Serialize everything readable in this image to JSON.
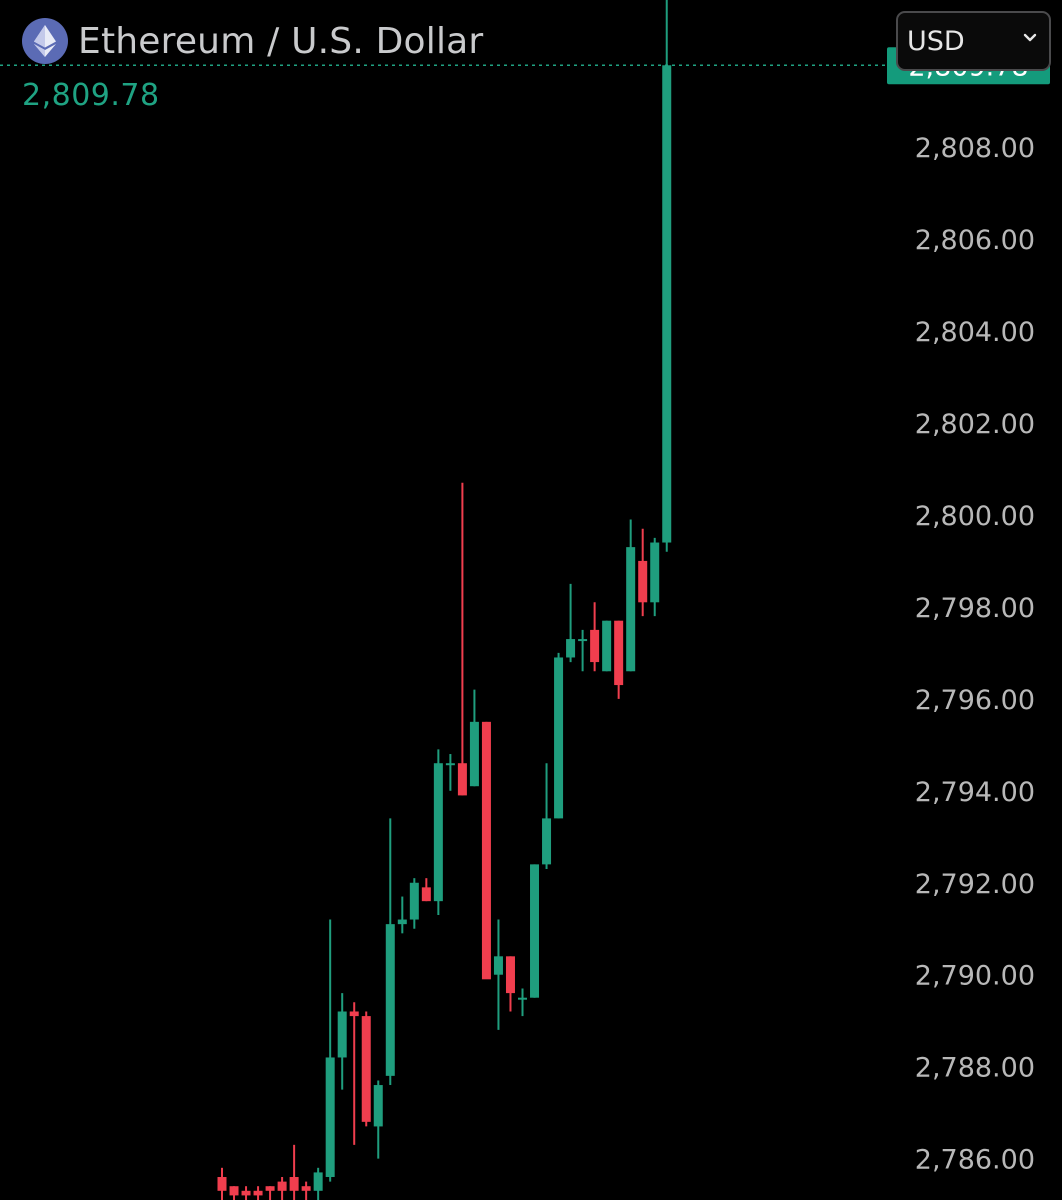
{
  "header": {
    "title": "Ethereum / U.S. Dollar",
    "price": "2,809.78",
    "coin_icon": "ethereum-icon"
  },
  "currency_select": {
    "value": "USD",
    "icon": "chevron-down-icon"
  },
  "colors": {
    "background": "#000000",
    "up": "#1f9e7e",
    "down": "#f03e4e",
    "price_text": "#1fa383",
    "price_tag": "#149b7c",
    "axis_text": "#b8b8b8"
  },
  "chart_data": {
    "type": "candlestick",
    "ylim": [
      2785.1,
      2811.2
    ],
    "y_ticks": [
      "2,808.00",
      "2,806.00",
      "2,804.00",
      "2,802.00",
      "2,800.00",
      "2,798.00",
      "2,796.00",
      "2,794.00",
      "2,792.00",
      "2,790.00",
      "2,788.00",
      "2,786.00"
    ],
    "tick_values": [
      2808,
      2806,
      2804,
      2802,
      2800,
      2798,
      2796,
      2794,
      2792,
      2790,
      2788,
      2786
    ],
    "last_price": 2809.78,
    "last_price_label": "2,809.78",
    "candles": [
      {
        "o": 2785.6,
        "h": 2785.8,
        "l": 2785.1,
        "c": 2785.3
      },
      {
        "o": 2785.4,
        "h": 2785.4,
        "l": 2785.1,
        "c": 2785.2
      },
      {
        "o": 2785.3,
        "h": 2785.4,
        "l": 2785.1,
        "c": 2785.2
      },
      {
        "o": 2785.3,
        "h": 2785.4,
        "l": 2785.1,
        "c": 2785.2
      },
      {
        "o": 2785.4,
        "h": 2785.4,
        "l": 2785.1,
        "c": 2785.3
      },
      {
        "o": 2785.5,
        "h": 2785.6,
        "l": 2785.1,
        "c": 2785.3
      },
      {
        "o": 2785.6,
        "h": 2786.3,
        "l": 2785.1,
        "c": 2785.3
      },
      {
        "o": 2785.4,
        "h": 2785.5,
        "l": 2785.1,
        "c": 2785.3
      },
      {
        "o": 2785.3,
        "h": 2785.8,
        "l": 2785.1,
        "c": 2785.7
      },
      {
        "o": 2785.6,
        "h": 2791.2,
        "l": 2785.5,
        "c": 2788.2
      },
      {
        "o": 2788.2,
        "h": 2789.6,
        "l": 2787.5,
        "c": 2789.2
      },
      {
        "o": 2789.2,
        "h": 2789.4,
        "l": 2786.3,
        "c": 2789.1
      },
      {
        "o": 2789.1,
        "h": 2789.2,
        "l": 2786.7,
        "c": 2786.8
      },
      {
        "o": 2786.7,
        "h": 2787.7,
        "l": 2786.0,
        "c": 2787.6
      },
      {
        "o": 2787.8,
        "h": 2793.4,
        "l": 2787.6,
        "c": 2791.1
      },
      {
        "o": 2791.1,
        "h": 2791.7,
        "l": 2790.9,
        "c": 2791.2
      },
      {
        "o": 2791.2,
        "h": 2792.1,
        "l": 2791.0,
        "c": 2792.0
      },
      {
        "o": 2791.9,
        "h": 2792.1,
        "l": 2791.6,
        "c": 2791.6
      },
      {
        "o": 2791.6,
        "h": 2794.9,
        "l": 2791.3,
        "c": 2794.6
      },
      {
        "o": 2794.6,
        "h": 2794.8,
        "l": 2794.0,
        "c": 2794.6
      },
      {
        "o": 2794.6,
        "h": 2800.7,
        "l": 2793.9,
        "c": 2793.9
      },
      {
        "o": 2794.1,
        "h": 2796.2,
        "l": 2794.1,
        "c": 2795.5
      },
      {
        "o": 2795.5,
        "h": 2795.5,
        "l": 2790.0,
        "c": 2789.9
      },
      {
        "o": 2790.0,
        "h": 2791.2,
        "l": 2788.8,
        "c": 2790.4
      },
      {
        "o": 2790.4,
        "h": 2790.4,
        "l": 2789.2,
        "c": 2789.6
      },
      {
        "o": 2789.5,
        "h": 2789.7,
        "l": 2789.1,
        "c": 2789.5
      },
      {
        "o": 2789.5,
        "h": 2792.4,
        "l": 2789.5,
        "c": 2792.4
      },
      {
        "o": 2792.4,
        "h": 2794.6,
        "l": 2792.3,
        "c": 2793.4
      },
      {
        "o": 2793.4,
        "h": 2797.0,
        "l": 2793.4,
        "c": 2796.9
      },
      {
        "o": 2796.9,
        "h": 2798.5,
        "l": 2796.8,
        "c": 2797.3
      },
      {
        "o": 2797.3,
        "h": 2797.5,
        "l": 2796.6,
        "c": 2797.3
      },
      {
        "o": 2797.5,
        "h": 2798.1,
        "l": 2796.6,
        "c": 2796.8
      },
      {
        "o": 2796.6,
        "h": 2797.7,
        "l": 2796.6,
        "c": 2797.7
      },
      {
        "o": 2797.7,
        "h": 2797.7,
        "l": 2796.0,
        "c": 2796.3
      },
      {
        "o": 2796.6,
        "h": 2799.9,
        "l": 2796.6,
        "c": 2799.3
      },
      {
        "o": 2799.0,
        "h": 2799.7,
        "l": 2797.8,
        "c": 2798.1
      },
      {
        "o": 2798.1,
        "h": 2799.5,
        "l": 2797.8,
        "c": 2799.4
      },
      {
        "o": 2799.4,
        "h": 2811.4,
        "l": 2799.2,
        "c": 2809.78
      }
    ]
  }
}
